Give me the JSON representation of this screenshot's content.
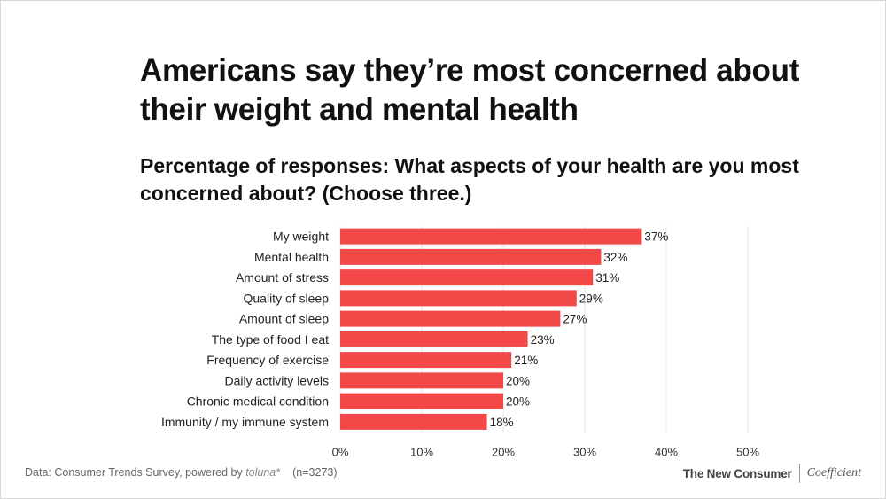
{
  "title": "Americans say they’re most concerned about their weight and mental health",
  "subtitle": "Percentage of responses: What aspects of your health are you most concerned about? (Choose three.)",
  "chart_data": {
    "type": "bar",
    "orientation": "horizontal",
    "categories": [
      "My weight",
      "Mental health",
      "Amount of stress",
      "Quality of sleep",
      "Amount of sleep",
      "The type of food I eat",
      "Frequency of exercise",
      "Daily activity levels",
      "Chronic medical condition",
      "Immunity / my immune system"
    ],
    "values": [
      37,
      32,
      31,
      29,
      27,
      23,
      21,
      20,
      20,
      18
    ],
    "value_labels": [
      "37%",
      "32%",
      "31%",
      "29%",
      "27%",
      "23%",
      "21%",
      "20%",
      "20%",
      "18%"
    ],
    "xlim": [
      0,
      50
    ],
    "xticks": [
      0,
      10,
      20,
      30,
      40,
      50
    ],
    "xtick_labels": [
      "0%",
      "10%",
      "20%",
      "30%",
      "40%",
      "50%"
    ],
    "grid": "vertical",
    "bar_color": "#f24848"
  },
  "footer": {
    "source_prefix": "Data: Consumer Trends Survey, powered by ",
    "source_brand": "toluna*",
    "sample": "(n=3273)",
    "logo_primary": "The New Consumer",
    "logo_secondary": "Coefficient"
  }
}
